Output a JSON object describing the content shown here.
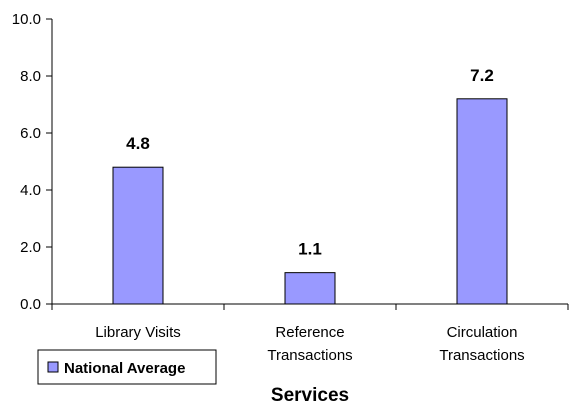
{
  "chart_data": {
    "type": "bar",
    "categories": [
      [
        "Library Visits"
      ],
      [
        "Reference",
        "Transactions"
      ],
      [
        "Circulation",
        "Transactions"
      ]
    ],
    "series": [
      {
        "name": "National Average",
        "values": [
          4.8,
          1.1,
          7.2
        ],
        "color": "#9999ff"
      }
    ],
    "data_labels": [
      "4.8",
      "1.1",
      "7.2"
    ],
    "xlabel": "Services",
    "ylabel": "",
    "ylim": [
      0,
      10
    ],
    "yticks": [
      "0.0",
      "2.0",
      "4.0",
      "6.0",
      "8.0",
      "10.0"
    ],
    "grid": false,
    "legend": "bottom-left"
  }
}
